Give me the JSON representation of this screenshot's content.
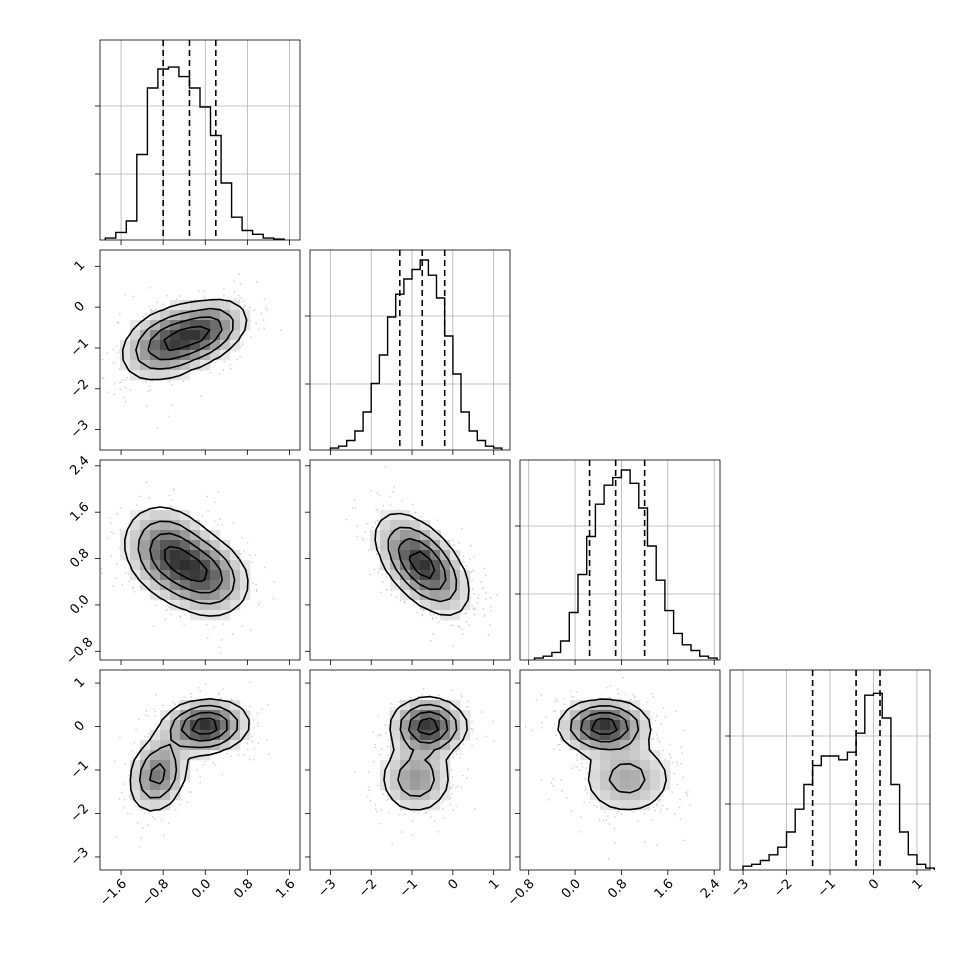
{
  "chart_data": {
    "type": "corner",
    "grid": true,
    "parameters": [
      {
        "range": [
          -2.0,
          1.8
        ],
        "ticks": [
          -1.6,
          -0.8,
          0.0,
          0.8,
          1.6
        ],
        "tick_labels": [
          "−1.6",
          "−0.8",
          "0.0",
          "0.8",
          "1.6"
        ],
        "quantiles": [
          -0.8,
          -0.3,
          0.2
        ],
        "hist_start": -1.9,
        "hist_step": 0.2,
        "hist_density": [
          0.01,
          0.04,
          0.1,
          0.45,
          0.8,
          0.9,
          0.91,
          0.86,
          0.8,
          0.7,
          0.55,
          0.3,
          0.12,
          0.05,
          0.03,
          0.01,
          0.005
        ]
      },
      {
        "range": [
          -3.5,
          1.4
        ],
        "ticks": [
          -3,
          -2,
          -1,
          0,
          1
        ],
        "tick_labels": [
          "−3",
          "−2",
          "−1",
          "0",
          "1"
        ],
        "quantiles": [
          -1.3,
          -0.75,
          -0.2
        ],
        "hist_start": -3.0,
        "hist_step": 0.2,
        "hist_density": [
          0.01,
          0.02,
          0.05,
          0.1,
          0.2,
          0.35,
          0.5,
          0.7,
          0.82,
          0.9,
          0.95,
          1.0,
          0.92,
          0.8,
          0.6,
          0.4,
          0.2,
          0.1,
          0.05,
          0.02,
          0.01
        ]
      },
      {
        "range": [
          -0.95,
          2.5
        ],
        "ticks": [
          -0.8,
          0.0,
          0.8,
          1.6,
          2.4
        ],
        "tick_labels": [
          "−0.8",
          "0.0",
          "0.8",
          "1.6",
          "2.4"
        ],
        "quantiles": [
          0.25,
          0.7,
          1.2
        ],
        "hist_start": -0.7,
        "hist_step": 0.15,
        "hist_density": [
          0.01,
          0.02,
          0.04,
          0.1,
          0.25,
          0.45,
          0.65,
          0.82,
          0.92,
          0.96,
          1.0,
          0.93,
          0.8,
          0.6,
          0.42,
          0.26,
          0.14,
          0.08,
          0.05,
          0.02,
          0.01
        ]
      },
      {
        "range": [
          -3.3,
          1.3
        ],
        "ticks": [
          -3,
          -2,
          -1,
          0,
          1
        ],
        "tick_labels": [
          "−3",
          "−2",
          "−1",
          "0",
          "1"
        ],
        "quantiles": [
          -1.4,
          -0.4,
          0.15
        ],
        "hist_start": -3.0,
        "hist_step": 0.2,
        "hist_density": [
          0.02,
          0.03,
          0.05,
          0.08,
          0.12,
          0.2,
          0.32,
          0.45,
          0.55,
          0.6,
          0.6,
          0.58,
          0.62,
          0.72,
          0.92,
          0.93,
          0.8,
          0.45,
          0.2,
          0.08,
          0.03,
          0.01
        ]
      }
    ],
    "y_axis_labels": {
      "row2": [
        "−3",
        "−2",
        "−1",
        "0",
        "1"
      ],
      "row3": [
        "−0.8",
        "0.0",
        "0.8",
        "1.6",
        "2.4"
      ],
      "row4": [
        "−3",
        "−2",
        "−1",
        "0",
        "1"
      ]
    },
    "pairs": [
      {
        "x": 0,
        "y": 1,
        "components": [
          {
            "w": 0.55,
            "mx": -0.75,
            "my": -0.9,
            "sx": 0.42,
            "sy": 0.45,
            "rho": 0.3
          },
          {
            "w": 0.45,
            "mx": 0.0,
            "my": -0.6,
            "sx": 0.4,
            "sy": 0.4,
            "rho": 0.35
          }
        ]
      },
      {
        "x": 0,
        "y": 2,
        "components": [
          {
            "w": 0.55,
            "mx": -0.7,
            "my": 0.9,
            "sx": 0.42,
            "sy": 0.4,
            "rho": -0.2
          },
          {
            "w": 0.45,
            "mx": 0.0,
            "my": 0.5,
            "sx": 0.42,
            "sy": 0.35,
            "rho": -0.2
          }
        ]
      },
      {
        "x": 1,
        "y": 2,
        "components": [
          {
            "w": 1.0,
            "mx": -0.75,
            "my": 0.7,
            "sx": 0.55,
            "sy": 0.42,
            "rho": -0.55
          }
        ]
      },
      {
        "x": 0,
        "y": 3,
        "components": [
          {
            "w": 0.6,
            "mx": 0.0,
            "my": 0.0,
            "sx": 0.4,
            "sy": 0.3,
            "rho": 0.1
          },
          {
            "w": 0.4,
            "mx": -0.9,
            "my": -1.1,
            "sx": 0.28,
            "sy": 0.45,
            "rho": 0.2
          }
        ]
      },
      {
        "x": 1,
        "y": 3,
        "components": [
          {
            "w": 0.6,
            "mx": -0.6,
            "my": 0.0,
            "sx": 0.45,
            "sy": 0.32,
            "rho": 0.0
          },
          {
            "w": 0.4,
            "mx": -0.9,
            "my": -1.2,
            "sx": 0.45,
            "sy": 0.42,
            "rho": 0.0
          }
        ]
      },
      {
        "x": 2,
        "y": 3,
        "components": [
          {
            "w": 0.6,
            "mx": 0.5,
            "my": 0.0,
            "sx": 0.38,
            "sy": 0.3,
            "rho": 0.0
          },
          {
            "w": 0.4,
            "mx": 0.9,
            "my": -1.2,
            "sx": 0.42,
            "sy": 0.45,
            "rho": 0.0
          }
        ]
      }
    ],
    "colors": {
      "line": "#000000",
      "grid": "#b0b0b0",
      "points": "#808080"
    }
  }
}
